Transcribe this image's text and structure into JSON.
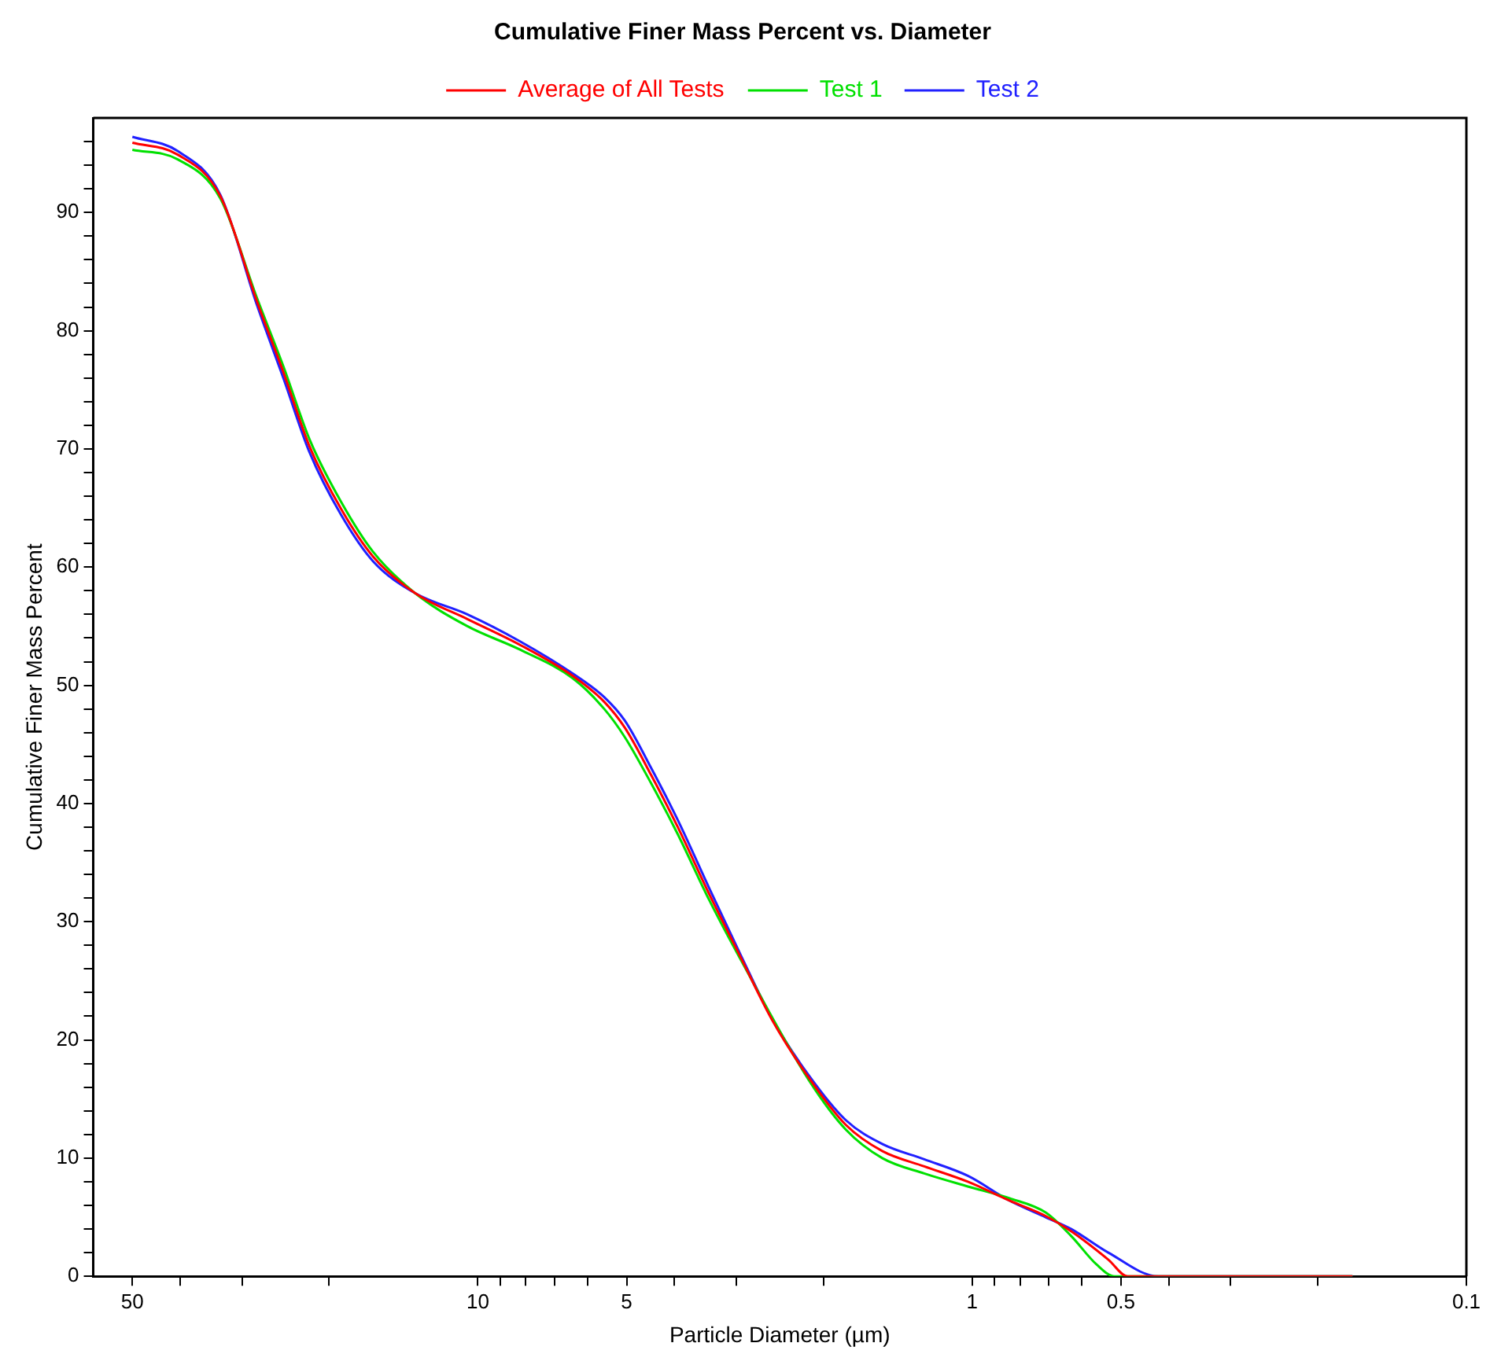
{
  "chart_data": {
    "type": "line",
    "title": "Cumulative Finer Mass Percent vs. Diameter",
    "xlabel": "Particle Diameter (µm)",
    "ylabel": "Cumulative Finer Mass Percent",
    "log": "x",
    "grid": false,
    "legend": "top",
    "marker": "none",
    "line_style": "solid",
    "xlim": [
      60,
      0.1
    ],
    "ylim": [
      0,
      98
    ],
    "xticks": [
      50,
      {
        "value": 40,
        "label": null
      },
      {
        "value": 30,
        "label": null
      },
      {
        "value": 20,
        "label": null
      },
      10,
      {
        "value": 9,
        "label": null
      },
      {
        "value": 8,
        "label": null
      },
      {
        "value": 7,
        "label": null
      },
      {
        "value": 6,
        "label": null
      },
      5,
      {
        "value": 4,
        "label": null
      },
      {
        "value": 3,
        "label": null
      },
      {
        "value": 2,
        "label": null
      },
      1,
      {
        "value": 0.9,
        "label": null
      },
      {
        "value": 0.8,
        "label": null
      },
      {
        "value": 0.7,
        "label": null
      },
      {
        "value": 0.6,
        "label": null
      },
      0.5,
      {
        "value": 0.4,
        "label": null
      },
      {
        "value": 0.3,
        "label": null
      },
      {
        "value": 0.2,
        "label": null
      },
      0.1
    ],
    "yticks": [
      0,
      {
        "value": 2,
        "label": null
      },
      {
        "value": 4,
        "label": null
      },
      {
        "value": 6,
        "label": null
      },
      {
        "value": 8,
        "label": null
      },
      10,
      {
        "value": 12,
        "label": null
      },
      {
        "value": 14,
        "label": null
      },
      {
        "value": 16,
        "label": null
      },
      {
        "value": 18,
        "label": null
      },
      20,
      {
        "value": 22,
        "label": null
      },
      {
        "value": 24,
        "label": null
      },
      {
        "value": 26,
        "label": null
      },
      {
        "value": 28,
        "label": null
      },
      30,
      {
        "value": 32,
        "label": null
      },
      {
        "value": 34,
        "label": null
      },
      {
        "value": 36,
        "label": null
      },
      {
        "value": 38,
        "label": null
      },
      40,
      {
        "value": 42,
        "label": null
      },
      {
        "value": 44,
        "label": null
      },
      {
        "value": 46,
        "label": null
      },
      {
        "value": 48,
        "label": null
      },
      50,
      {
        "value": 52,
        "label": null
      },
      {
        "value": 54,
        "label": null
      },
      {
        "value": 56,
        "label": null
      },
      {
        "value": 58,
        "label": null
      },
      60,
      {
        "value": 62,
        "label": null
      },
      {
        "value": 64,
        "label": null
      },
      {
        "value": 66,
        "label": null
      },
      {
        "value": 68,
        "label": null
      },
      70,
      {
        "value": 72,
        "label": null
      },
      {
        "value": 74,
        "label": null
      },
      {
        "value": 76,
        "label": null
      },
      {
        "value": 78,
        "label": null
      },
      80,
      {
        "value": 82,
        "label": null
      },
      {
        "value": 84,
        "label": null
      },
      {
        "value": 86,
        "label": null
      },
      {
        "value": 88,
        "label": null
      },
      90,
      {
        "value": 92,
        "label": null
      },
      {
        "value": 94,
        "label": null
      },
      {
        "value": 96,
        "label": null
      }
    ],
    "series": [
      {
        "name": "Average of All Tests",
        "color": "#ff0000",
        "x": [
          50,
          40.5,
          33.2,
          28,
          24.7,
          21.9,
          18.9,
          16.3,
          13.4,
          10.5,
          8.2,
          6.43,
          5.55,
          5.04,
          4.46,
          3.94,
          3.4,
          2.94,
          2.54,
          2.14,
          1.8,
          1.52,
          1.25,
          1.02,
          0.84,
          0.71,
          0.63,
          0.53,
          0.485,
          0.17
        ],
        "values": [
          95.9,
          94.9,
          91.4,
          82.5,
          76.4,
          70.2,
          64.9,
          60.9,
          57.8,
          55.6,
          53.4,
          50.8,
          48.6,
          46.4,
          42.4,
          38.0,
          32.3,
          27.0,
          21.7,
          16.8,
          12.8,
          10.6,
          9.3,
          8.0,
          6.4,
          5.1,
          3.8,
          1.4,
          0,
          0
        ]
      },
      {
        "name": "Test 1",
        "color": "#00e000",
        "x": [
          50,
          40.5,
          33.2,
          28,
          24.7,
          21.9,
          18.9,
          16.3,
          13.4,
          10.5,
          8.2,
          6.43,
          5.55,
          5.04,
          4.46,
          3.94,
          3.4,
          2.94,
          2.54,
          2.14,
          1.8,
          1.52,
          1.25,
          1.02,
          0.84,
          0.71,
          0.63,
          0.56,
          0.515,
          0.17
        ],
        "values": [
          95.3,
          94.5,
          91.2,
          82.8,
          76.9,
          70.8,
          65.5,
          61.3,
          57.8,
          55.0,
          53.0,
          50.6,
          48.0,
          45.6,
          41.7,
          37.4,
          31.8,
          26.8,
          null,
          16.6,
          12.4,
          10.0,
          8.7,
          7.6,
          6.6,
          5.4,
          3.4,
          1.0,
          0,
          0
        ]
      },
      {
        "name": "Test 2",
        "color": "#2020ff",
        "x": [
          50,
          40.5,
          33.2,
          28,
          24.7,
          21.9,
          18.9,
          16.3,
          13.4,
          10.5,
          8.2,
          6.43,
          5.55,
          5.04,
          4.46,
          3.94,
          3.4,
          2.94,
          2.54,
          2.14,
          1.8,
          1.52,
          1.25,
          1.02,
          0.84,
          0.71,
          0.63,
          0.53,
          0.42,
          0.17
        ],
        "values": [
          96.4,
          95.2,
          91.5,
          82.2,
          75.9,
          69.7,
          64.4,
          60.5,
          57.8,
          56.0,
          53.7,
          51.0,
          49.0,
          47.0,
          43.0,
          38.6,
          32.8,
          27.2,
          21.8,
          17.0,
          13.2,
          11.2,
          9.9,
          8.5,
          6.4,
          5.0,
          4.0,
          2.0,
          0,
          0
        ]
      }
    ]
  }
}
